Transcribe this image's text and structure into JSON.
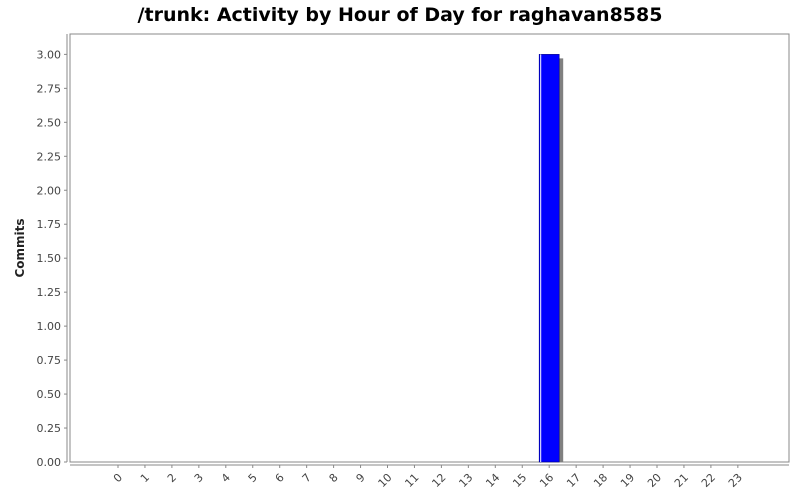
{
  "chart_data": {
    "type": "bar",
    "title": "/trunk: Activity by Hour of Day for raghavan8585",
    "xlabel": "",
    "ylabel": "Commits",
    "categories": [
      "0",
      "1",
      "2",
      "3",
      "4",
      "5",
      "6",
      "7",
      "8",
      "9",
      "10",
      "11",
      "12",
      "13",
      "14",
      "15",
      "16",
      "17",
      "18",
      "19",
      "20",
      "21",
      "22",
      "23"
    ],
    "values": [
      0,
      0,
      0,
      0,
      0,
      0,
      0,
      0,
      0,
      0,
      0,
      0,
      0,
      0,
      0,
      0,
      3,
      0,
      0,
      0,
      0,
      0,
      0,
      0
    ],
    "ylim": [
      0,
      3.15
    ],
    "yticks": [
      "0.00",
      "0.25",
      "0.50",
      "0.75",
      "1.00",
      "1.25",
      "1.50",
      "1.75",
      "2.00",
      "2.25",
      "2.50",
      "2.75",
      "3.00"
    ],
    "grid": false,
    "legend": "none",
    "colors": {
      "bar": "#0000ff",
      "shadow": "#808080",
      "axis": "#888888"
    }
  }
}
